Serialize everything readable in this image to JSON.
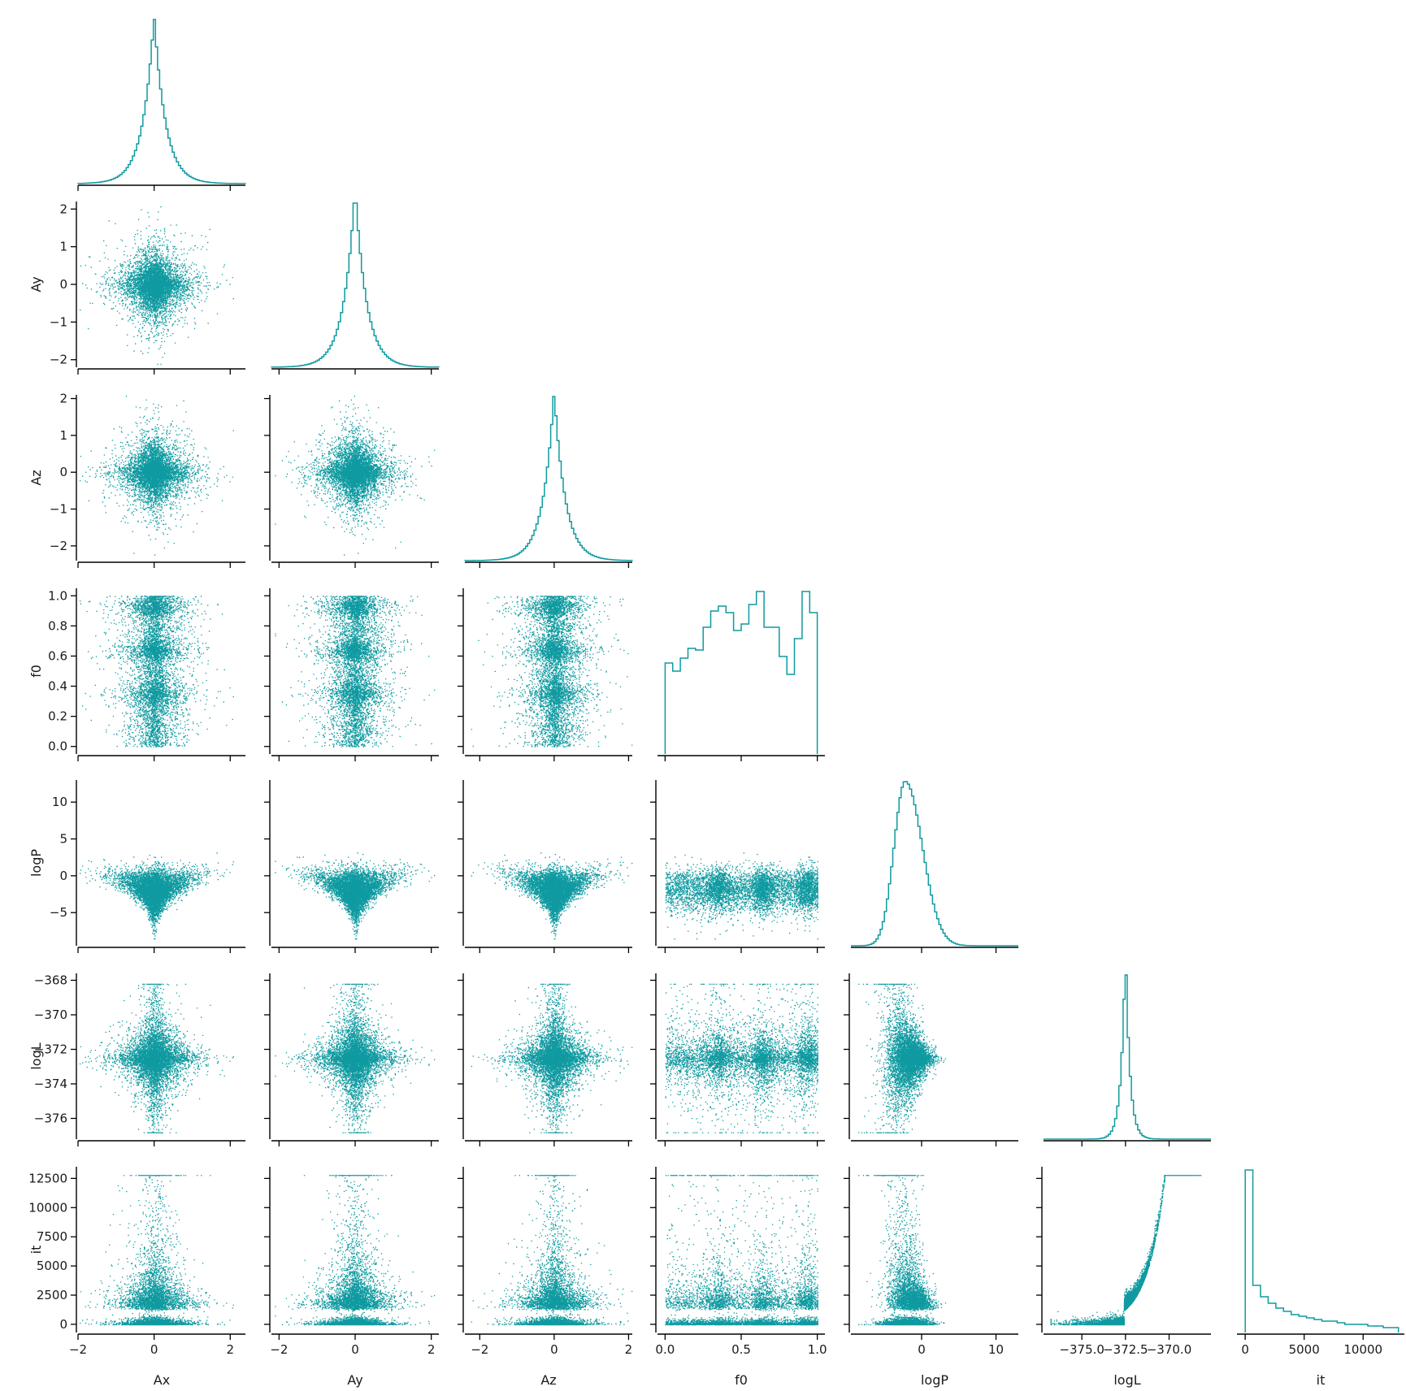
{
  "colors": {
    "series": "#0e9aa0",
    "axis": "#000000",
    "background": "#ffffff"
  },
  "chart_data": {
    "type": "scatter",
    "layout": "corner pair plot (lower triangle scatter, diagonal step histograms)",
    "grid": false,
    "legend": "none",
    "variables": [
      {
        "name": "Ax",
        "lim": [
          -2.0,
          2.4
        ],
        "ticks": [
          -2,
          0,
          2
        ],
        "tick_labels": [
          "−2",
          "0",
          "2"
        ],
        "hist": {
          "type": "laplace",
          "center": 0,
          "scale": 0.3
        }
      },
      {
        "name": "Ay",
        "lim": [
          -2.2,
          2.2
        ],
        "ticks": [
          -2,
          -1,
          0,
          1,
          2
        ],
        "tick_labels": [
          "−2",
          "−1",
          "0",
          "1",
          "2"
        ],
        "xticks": [
          -2,
          0,
          2
        ],
        "xtick_labels": [
          "−2",
          "0",
          "2"
        ],
        "hist": {
          "type": "laplace",
          "center": 0,
          "scale": 0.3
        }
      },
      {
        "name": "Az",
        "lim": [
          -2.4,
          2.1
        ],
        "ticks": [
          -2,
          -1,
          0,
          1,
          2
        ],
        "tick_labels": [
          "−2",
          "−1",
          "0",
          "1",
          "2"
        ],
        "xticks": [
          -2,
          0,
          2
        ],
        "xtick_labels": [
          "−2",
          "0",
          "2"
        ],
        "hist": {
          "type": "laplace",
          "center": 0,
          "scale": 0.3
        }
      },
      {
        "name": "f0",
        "lim": [
          -0.05,
          1.05
        ],
        "ticks": [
          0.0,
          0.2,
          0.4,
          0.6,
          0.8,
          1.0
        ],
        "tick_labels": [
          "0.0",
          "0.2",
          "0.4",
          "0.6",
          "0.8",
          "1.0"
        ],
        "xticks": [
          0.0,
          0.5,
          1.0
        ],
        "xtick_labels": [
          "0.0",
          "0.5",
          "1.0"
        ],
        "hist": {
          "type": "bins",
          "edges": [
            0,
            0.05,
            0.1,
            0.15,
            0.2,
            0.25,
            0.3,
            0.35,
            0.4,
            0.45,
            0.5,
            0.55,
            0.6,
            0.65,
            0.7,
            0.75,
            0.8,
            0.85,
            0.9,
            0.95,
            1.0
          ],
          "counts": [
            0.56,
            0.51,
            0.59,
            0.65,
            0.64,
            0.78,
            0.88,
            0.91,
            0.87,
            0.76,
            0.8,
            0.92,
            1.0,
            0.78,
            0.78,
            0.6,
            0.49,
            0.71,
            1.0,
            0.87
          ]
        }
      },
      {
        "name": "logP",
        "lim": [
          -9.5,
          13.0
        ],
        "ticks": [
          -5,
          0,
          5,
          10
        ],
        "tick_labels": [
          "−5",
          "0",
          "5",
          "10"
        ],
        "xticks": [
          0,
          10
        ],
        "xtick_labels": [
          "0",
          "10"
        ],
        "hist": {
          "type": "skewed",
          "center": -2.2,
          "left_scale": 1.5,
          "right_scale": 2.3
        }
      },
      {
        "name": "logL",
        "lim": [
          -377.2,
          -367.6
        ],
        "ticks": [
          -376,
          -374,
          -372,
          -370,
          -368
        ],
        "tick_labels": [
          "−376",
          "−374",
          "−372",
          "−370",
          "−368"
        ],
        "xticks": [
          -375.0,
          -372.5,
          -370.0
        ],
        "xtick_labels": [
          "−375.0",
          "−372.5",
          "−370.0"
        ],
        "hist": {
          "type": "laplace",
          "center": -372.5,
          "scale": 0.25
        }
      },
      {
        "name": "it",
        "lim": [
          -700,
          13500
        ],
        "ticks": [
          0,
          2500,
          5000,
          7500,
          10000,
          12500
        ],
        "tick_labels": [
          "0",
          "2500",
          "5000",
          "7500",
          "10000",
          "12500"
        ],
        "xticks": [
          0,
          5000,
          10000
        ],
        "xtick_labels": [
          "0",
          "5000",
          "10000"
        ],
        "hist": {
          "type": "bins",
          "edges": [
            0,
            650,
            1300,
            1950,
            2600,
            3250,
            3900,
            4550,
            5200,
            5850,
            6500,
            7150,
            7800,
            8450,
            9100,
            9750,
            10400,
            11050,
            11700,
            12350,
            13000
          ],
          "counts": [
            1.0,
            0.29,
            0.22,
            0.18,
            0.15,
            0.13,
            0.11,
            0.1,
            0.09,
            0.08,
            0.07,
            0.07,
            0.06,
            0.05,
            0.05,
            0.05,
            0.04,
            0.04,
            0.03,
            0.03
          ]
        }
      }
    ],
    "n_samples": 6000,
    "sample_model": "Ax,Ay,Az ~ Laplace(0, 0.3); f0 mostly uniform with clusters near 0.35, 0.62 and 0.9; logP shrinks with radial amplitude; logL near -372.5; it increases with logL"
  }
}
